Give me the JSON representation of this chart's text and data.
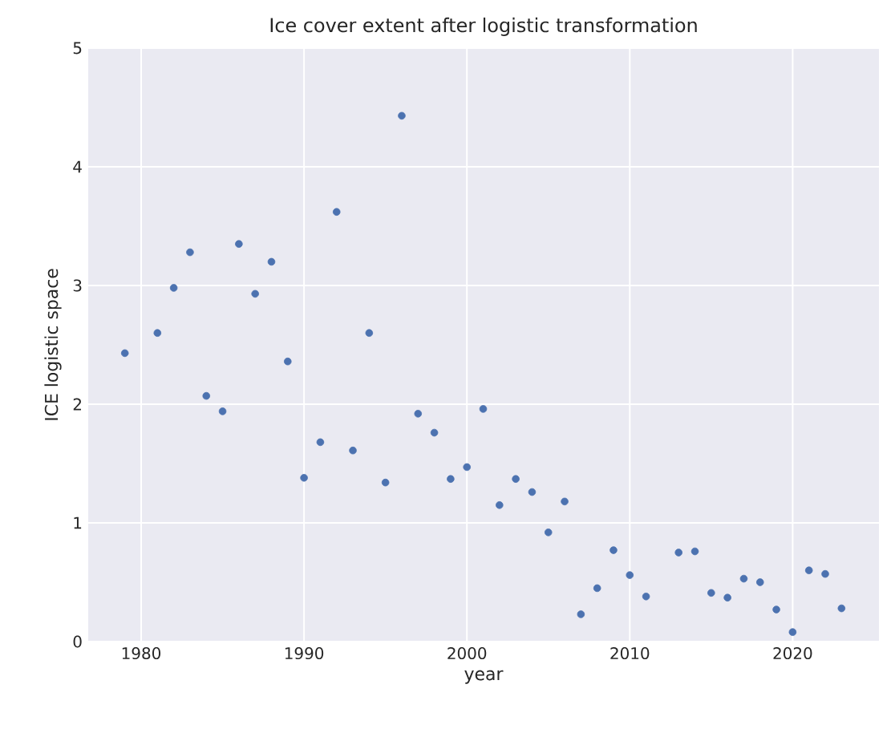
{
  "chart_data": {
    "type": "scatter",
    "title": "Ice cover extent after logistic transformation",
    "xlabel": "year",
    "ylabel": "ICE logistic space",
    "xlim": [
      1976.75,
      2025.3
    ],
    "ylim": [
      0,
      5
    ],
    "xticks": [
      1980,
      1990,
      2000,
      2010,
      2020
    ],
    "yticks": [
      0,
      1,
      2,
      3,
      4,
      5
    ],
    "grid": true,
    "series": [
      {
        "color": "#4c72b0",
        "x": [
          1979,
          1981,
          1982,
          1983,
          1984,
          1985,
          1986,
          1987,
          1988,
          1989,
          1990,
          1991,
          1992,
          1993,
          1994,
          1995,
          1996,
          1997,
          1998,
          1999,
          2000,
          2001,
          2002,
          2003,
          2004,
          2005,
          2006,
          2007,
          2008,
          2009,
          2010,
          2011,
          2013,
          2014,
          2015,
          2016,
          2017,
          2018,
          2019,
          2020,
          2021,
          2022,
          2023
        ],
        "values": [
          2.43,
          2.6,
          2.98,
          3.28,
          2.07,
          1.94,
          3.35,
          2.93,
          3.2,
          2.36,
          1.38,
          1.68,
          3.62,
          1.61,
          2.6,
          1.34,
          4.43,
          1.92,
          1.76,
          1.37,
          1.47,
          1.96,
          1.15,
          1.37,
          1.26,
          0.92,
          1.18,
          0.23,
          0.45,
          0.77,
          0.56,
          0.38,
          0.75,
          0.76,
          0.41,
          0.37,
          0.53,
          0.5,
          0.27,
          0.08,
          0.6,
          0.57,
          0.28
        ]
      }
    ]
  }
}
